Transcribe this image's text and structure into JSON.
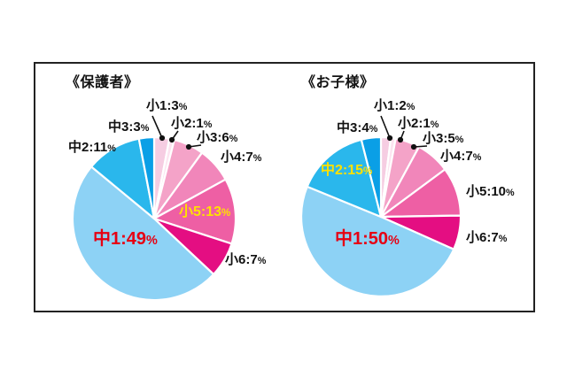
{
  "percent_sign": "%",
  "separator": ":",
  "colors": {
    "background": "#ffffff",
    "panel_border": "#222222",
    "label_text": "#111111",
    "emphasis_red": "#e60012",
    "emphasis_yellow": "#ffe100",
    "leader_line": "#111111",
    "slice_gap": "#ffffff"
  },
  "chart_data": [
    {
      "type": "pie",
      "title": "《保護者》",
      "unit": "%",
      "start_angle_deg": 0,
      "direction": "clockwise",
      "slices": [
        {
          "name": "小1",
          "value": 3,
          "color": "#f6cde2",
          "label_placement": "outside-leader"
        },
        {
          "name": "小2",
          "value": 1,
          "color": "#fce4f0",
          "label_placement": "outside-leader"
        },
        {
          "name": "小3",
          "value": 6,
          "color": "#f4a3c8",
          "label_placement": "outside-leader"
        },
        {
          "name": "小4",
          "value": 7,
          "color": "#f186ba",
          "label_placement": "outside"
        },
        {
          "name": "小5",
          "value": 13,
          "color": "#ee5fa4",
          "label_placement": "inside",
          "label_color": "#ffe100"
        },
        {
          "name": "小6",
          "value": 7,
          "color": "#e40e82",
          "label_placement": "outside"
        },
        {
          "name": "中1",
          "value": 49,
          "color": "#8dd2f5",
          "label_placement": "inside",
          "label_color": "#e60012"
        },
        {
          "name": "中2",
          "value": 11,
          "color": "#2ab7ec",
          "label_placement": "outside"
        },
        {
          "name": "中3",
          "value": 3,
          "color": "#0a9fe6",
          "label_placement": "outside"
        }
      ]
    },
    {
      "type": "pie",
      "title": "《お子様》",
      "unit": "%",
      "start_angle_deg": 0,
      "direction": "clockwise",
      "slices": [
        {
          "name": "小1",
          "value": 2,
          "color": "#f6cde2",
          "label_placement": "outside-leader"
        },
        {
          "name": "小2",
          "value": 1,
          "color": "#fce4f0",
          "label_placement": "outside-leader"
        },
        {
          "name": "小3",
          "value": 5,
          "color": "#f4a3c8",
          "label_placement": "outside-leader"
        },
        {
          "name": "小4",
          "value": 7,
          "color": "#f186ba",
          "label_placement": "outside"
        },
        {
          "name": "小5",
          "value": 10,
          "color": "#ee5fa4",
          "label_placement": "outside"
        },
        {
          "name": "小6",
          "value": 7,
          "color": "#e40e82",
          "label_placement": "outside"
        },
        {
          "name": "中1",
          "value": 50,
          "color": "#8dd2f5",
          "label_placement": "inside",
          "label_color": "#e60012"
        },
        {
          "name": "中2",
          "value": 15,
          "color": "#2ab7ec",
          "label_placement": "inside",
          "label_color": "#ffe100"
        },
        {
          "name": "中3",
          "value": 4,
          "color": "#0a9fe6",
          "label_placement": "outside"
        }
      ]
    }
  ]
}
